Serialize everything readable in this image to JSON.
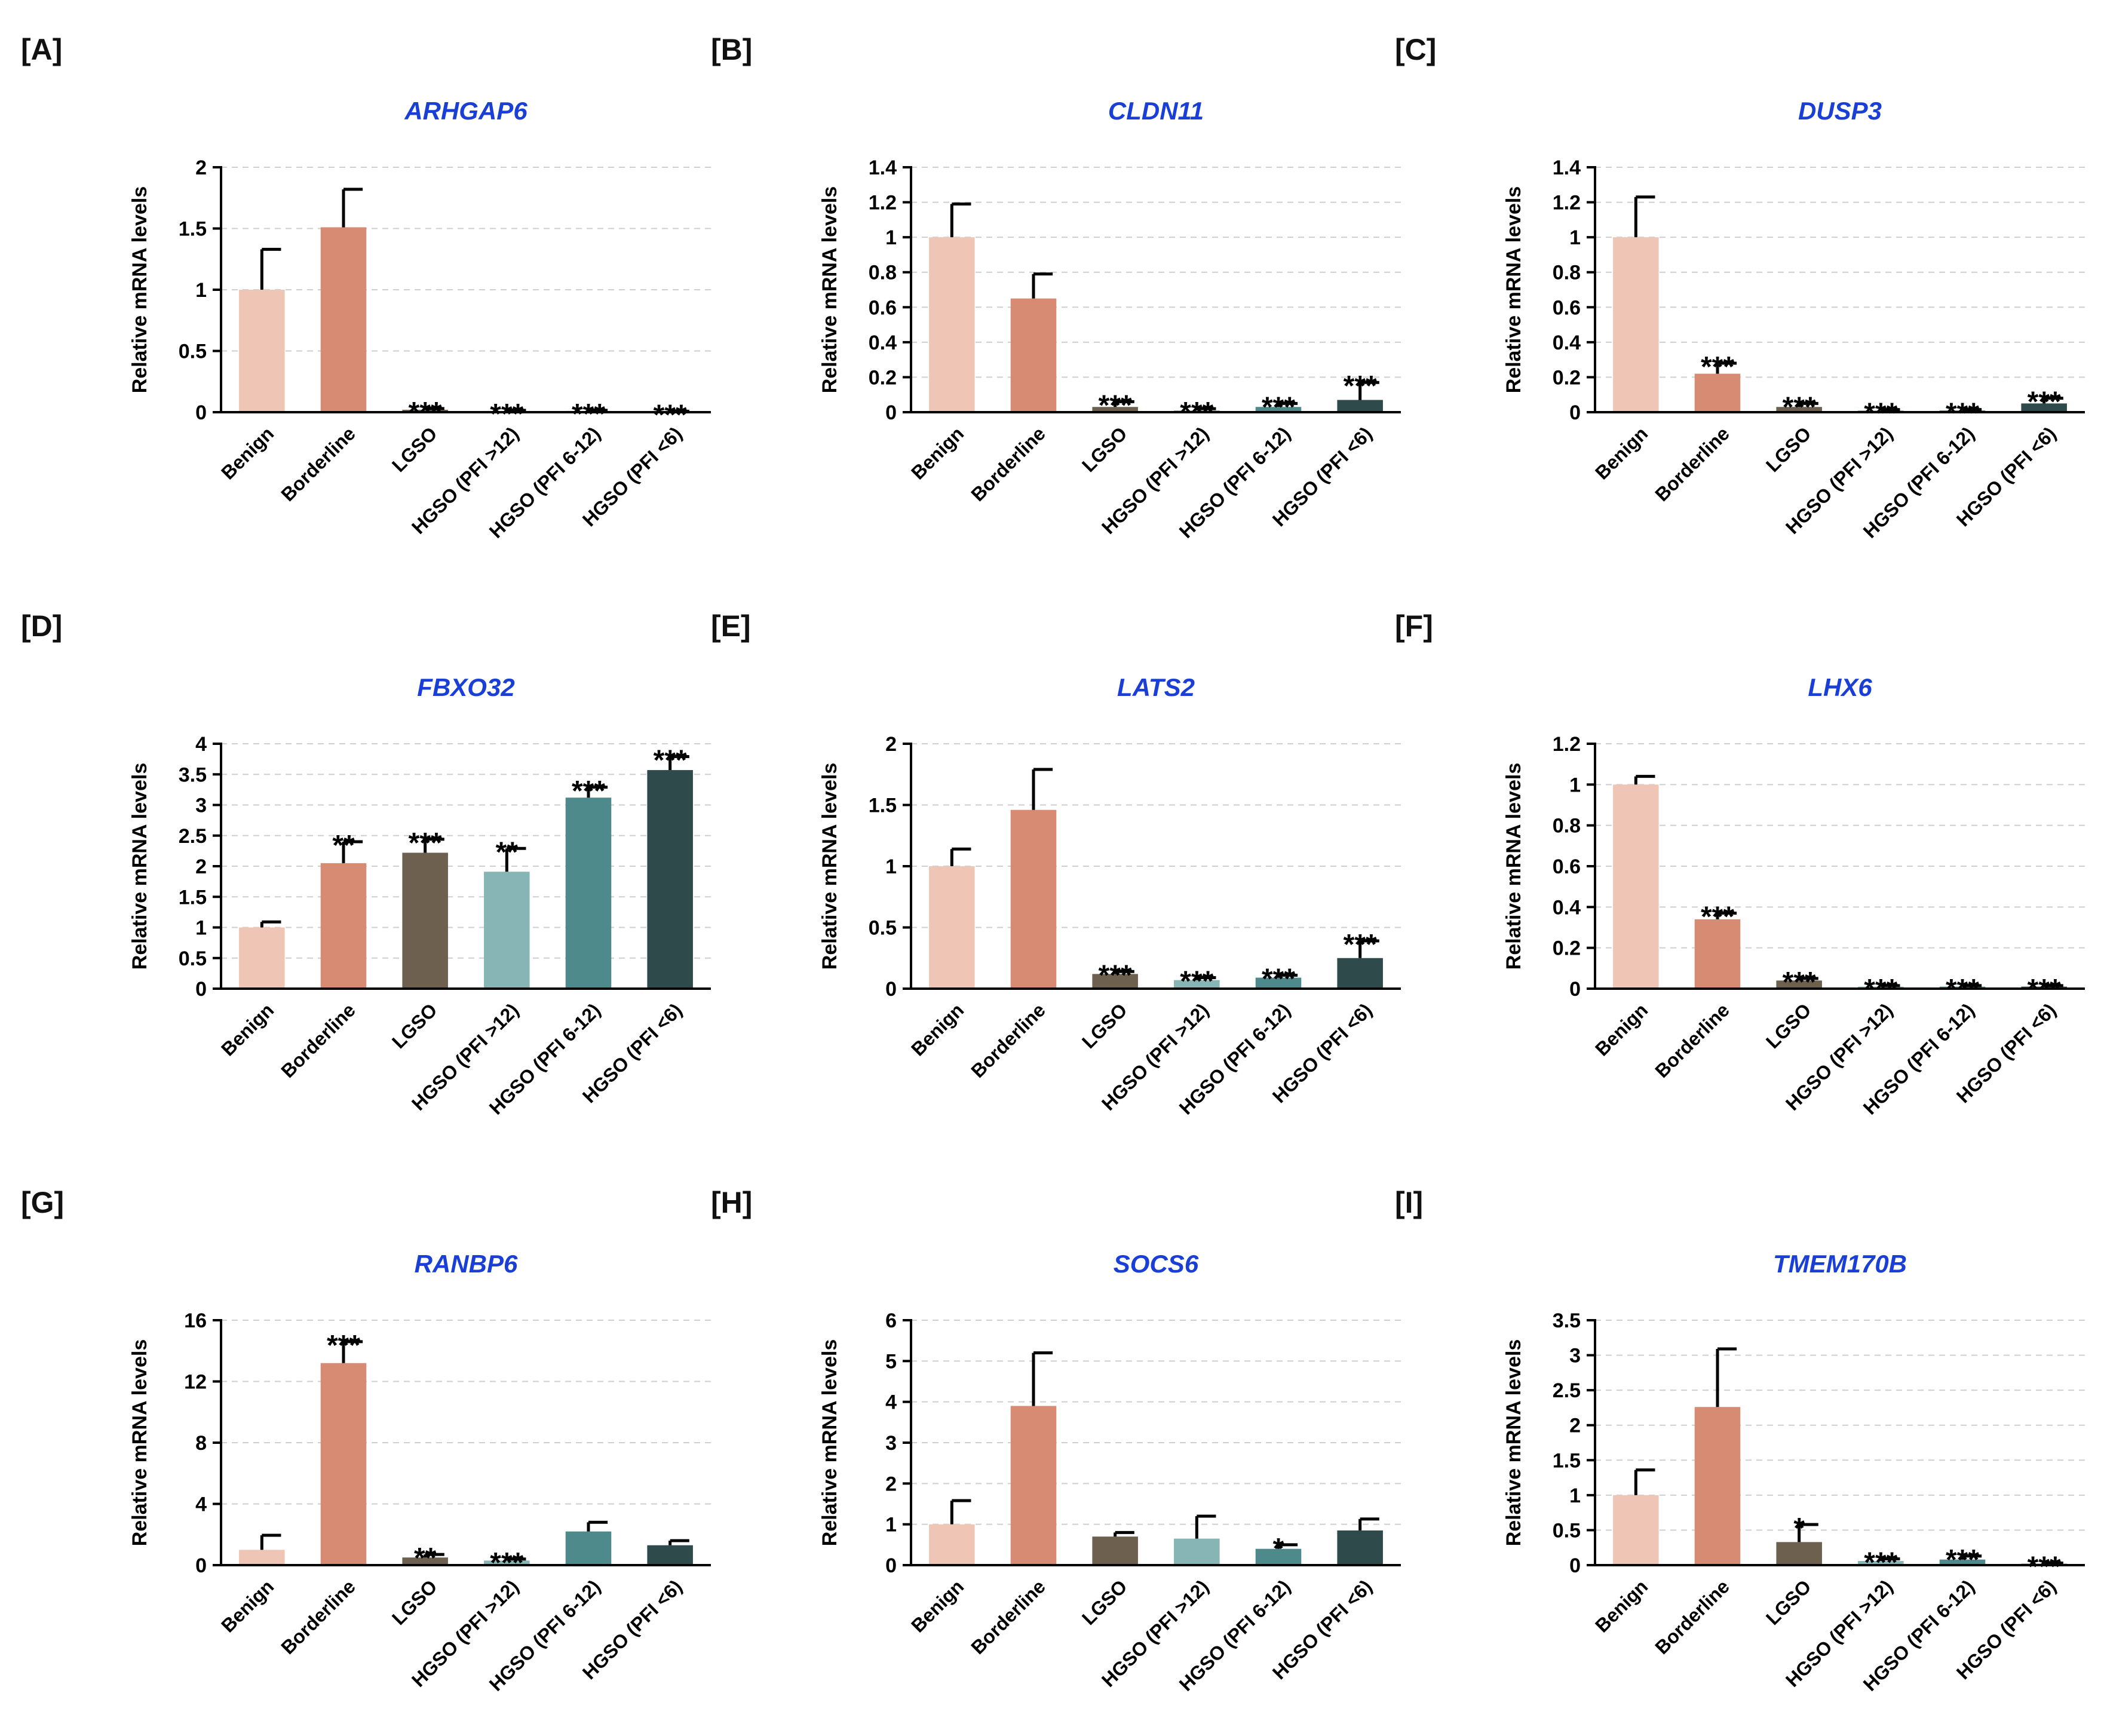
{
  "figure": {
    "categories": [
      "Benign",
      "Borderline",
      "LGSO",
      "HGSO (PFI >12)",
      "HGSO (PFI 6-12)",
      "HGSO (PFI <6)"
    ],
    "colors": [
      "#efc6b6",
      "#d68b72",
      "#6e604f",
      "#87b5b6",
      "#4e8a8c",
      "#2f4a4b"
    ],
    "title_color": "#1a3fd6",
    "ylabel": "Relative mRNA levels"
  },
  "chart_data": [
    {
      "type": "bar",
      "panel": "[A]",
      "title": "ARHGAP6",
      "ylabel": "Relative mRNA levels",
      "categories": [
        "Benign",
        "Borderline",
        "LGSO",
        "HGSO (PFI >12)",
        "HGSO (PFI 6-12)",
        "HGSO (PFI <6)"
      ],
      "values": [
        1.0,
        1.51,
        0.02,
        0.01,
        0.01,
        0.005
      ],
      "errors": [
        0.33,
        0.31,
        0.01,
        0.005,
        0.005,
        0.003
      ],
      "significance": [
        "",
        "",
        "***",
        "***",
        "***",
        "***"
      ],
      "ylim": [
        0,
        2
      ],
      "ticks": [
        0,
        0.5,
        1,
        1.5,
        2
      ],
      "tick_labels": [
        "0",
        "0.5",
        "1",
        "1.5",
        "2"
      ]
    },
    {
      "type": "bar",
      "panel": "[B]",
      "title": "CLDN11",
      "ylabel": "Relative mRNA levels",
      "categories": [
        "Benign",
        "Borderline",
        "LGSO",
        "HGSO (PFI >12)",
        "HGSO (PFI 6-12)",
        "HGSO (PFI <6)"
      ],
      "values": [
        1.0,
        0.65,
        0.03,
        0.01,
        0.03,
        0.07
      ],
      "errors": [
        0.19,
        0.14,
        0.03,
        0.01,
        0.02,
        0.1
      ],
      "significance": [
        "",
        "",
        "***",
        "***",
        "***",
        "***"
      ],
      "ylim": [
        0,
        1.4
      ],
      "ticks": [
        0,
        0.2,
        0.4,
        0.6,
        0.8,
        1,
        1.2,
        1.4
      ],
      "tick_labels": [
        "0",
        "0.2",
        "0.4",
        "0.6",
        "0.8",
        "1",
        "1.2",
        "1.4"
      ]
    },
    {
      "type": "bar",
      "panel": "[C]",
      "title": "DUSP3",
      "ylabel": "Relative mRNA levels",
      "categories": [
        "Benign",
        "Borderline",
        "LGSO",
        "HGSO (PFI >12)",
        "HGSO (PFI 6-12)",
        "HGSO (PFI <6)"
      ],
      "values": [
        1.0,
        0.22,
        0.03,
        0.01,
        0.01,
        0.05
      ],
      "errors": [
        0.23,
        0.06,
        0.02,
        0.005,
        0.005,
        0.03
      ],
      "significance": [
        "",
        "***",
        "***",
        "***",
        "***",
        "***"
      ],
      "ylim": [
        0,
        1.4
      ],
      "ticks": [
        0,
        0.2,
        0.4,
        0.6,
        0.8,
        1,
        1.2,
        1.4
      ],
      "tick_labels": [
        "0",
        "0.2",
        "0.4",
        "0.6",
        "0.8",
        "1",
        "1.2",
        "1.4"
      ]
    },
    {
      "type": "bar",
      "panel": "[D]",
      "title": "FBXO32",
      "ylabel": "Relative mRNA levels",
      "categories": [
        "Benign",
        "Borderline",
        "LGSO",
        "HGSO (PFI >12)",
        "HGSO (PFI 6-12)",
        "HGSO (PFI <6)"
      ],
      "values": [
        1.0,
        2.05,
        2.22,
        1.91,
        3.12,
        3.57
      ],
      "errors": [
        0.09,
        0.35,
        0.22,
        0.38,
        0.17,
        0.22
      ],
      "significance": [
        "",
        "**",
        "***",
        "**",
        "***",
        "***"
      ],
      "ylim": [
        0,
        4
      ],
      "ticks": [
        0,
        0.5,
        1,
        1.5,
        2,
        2.5,
        3,
        3.5,
        4
      ],
      "tick_labels": [
        "0",
        "0.5",
        "1",
        "1.5",
        "2",
        "2.5",
        "3",
        "3.5",
        "4"
      ]
    },
    {
      "type": "bar",
      "panel": "[E]",
      "title": "LATS2",
      "ylabel": "Relative mRNA levels",
      "categories": [
        "Benign",
        "Borderline",
        "LGSO",
        "HGSO (PFI >12)",
        "HGSO (PFI 6-12)",
        "HGSO (PFI <6)"
      ],
      "values": [
        1.0,
        1.46,
        0.12,
        0.07,
        0.09,
        0.25
      ],
      "errors": [
        0.14,
        0.33,
        0.02,
        0.02,
        0.02,
        0.14
      ],
      "significance": [
        "",
        "",
        "***",
        "***",
        "***",
        "***"
      ],
      "ylim": [
        0,
        2
      ],
      "ticks": [
        0,
        0.5,
        1,
        1.5,
        2
      ],
      "tick_labels": [
        "0",
        "0.5",
        "1",
        "1.5",
        "2"
      ]
    },
    {
      "type": "bar",
      "panel": "[F]",
      "title": "LHX6",
      "ylabel": "Relative mRNA levels",
      "categories": [
        "Benign",
        "Borderline",
        "LGSO",
        "HGSO (PFI >12)",
        "HGSO (PFI 6-12)",
        "HGSO (PFI <6)"
      ],
      "values": [
        1.0,
        0.34,
        0.04,
        0.01,
        0.01,
        0.01
      ],
      "errors": [
        0.04,
        0.03,
        0.01,
        0.005,
        0.005,
        0.005
      ],
      "significance": [
        "",
        "***",
        "***",
        "***",
        "***",
        "***"
      ],
      "ylim": [
        0,
        1.2
      ],
      "ticks": [
        0,
        0.2,
        0.4,
        0.6,
        0.8,
        1,
        1.2
      ],
      "tick_labels": [
        "0",
        "0.2",
        "0.4",
        "0.6",
        "0.8",
        "1",
        "1.2"
      ]
    },
    {
      "type": "bar",
      "panel": "[G]",
      "title": "RANBP6",
      "ylabel": "Relative mRNA levels",
      "categories": [
        "Benign",
        "Borderline",
        "LGSO",
        "HGSO (PFI >12)",
        "HGSO (PFI 6-12)",
        "HGSO (PFI <6)"
      ],
      "values": [
        1.0,
        13.2,
        0.5,
        0.3,
        2.2,
        1.3
      ],
      "errors": [
        0.95,
        1.4,
        0.2,
        0.1,
        0.6,
        0.3
      ],
      "significance": [
        "",
        "***",
        "**",
        "***",
        "",
        ""
      ],
      "ylim": [
        0,
        16
      ],
      "ticks": [
        0,
        4,
        8,
        12,
        16
      ],
      "tick_labels": [
        "0",
        "4",
        "8",
        "12",
        "16"
      ]
    },
    {
      "type": "bar",
      "panel": "[H]",
      "title": "SOCS6",
      "ylabel": "Relative mRNA levels",
      "categories": [
        "Benign",
        "Borderline",
        "LGSO",
        "HGSO (PFI >12)",
        "HGSO (PFI 6-12)",
        "HGSO (PFI <6)"
      ],
      "values": [
        1.0,
        3.9,
        0.7,
        0.65,
        0.4,
        0.85
      ],
      "errors": [
        0.58,
        1.3,
        0.1,
        0.55,
        0.1,
        0.28
      ],
      "significance": [
        "",
        "",
        "",
        "",
        "*",
        ""
      ],
      "ylim": [
        0,
        6
      ],
      "ticks": [
        0,
        1,
        2,
        3,
        4,
        5,
        6
      ],
      "tick_labels": [
        "0",
        "1",
        "2",
        "3",
        "4",
        "5",
        "6"
      ]
    },
    {
      "type": "bar",
      "panel": "[I]",
      "title": "TMEM170B",
      "ylabel": "Relative mRNA levels",
      "categories": [
        "Benign",
        "Borderline",
        "LGSO",
        "HGSO (PFI >12)",
        "HGSO (PFI 6-12)",
        "HGSO (PFI <6)"
      ],
      "values": [
        1.0,
        2.26,
        0.33,
        0.06,
        0.08,
        0.02
      ],
      "errors": [
        0.36,
        0.83,
        0.25,
        0.03,
        0.05,
        0.01
      ],
      "significance": [
        "",
        "",
        "*",
        "***",
        "***",
        "***"
      ],
      "ylim": [
        0,
        3.5
      ],
      "ticks": [
        0,
        0.5,
        1,
        1.5,
        2,
        2.5,
        3,
        3.5
      ],
      "tick_labels": [
        "0",
        "0.5",
        "1",
        "1.5",
        "2",
        "2.5",
        "3",
        "3.5"
      ]
    }
  ]
}
